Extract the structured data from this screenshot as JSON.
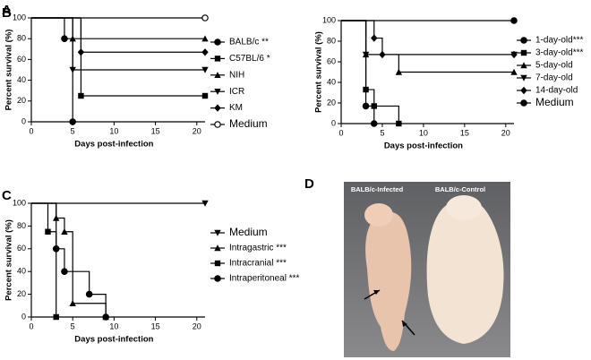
{
  "chart_data": [
    {
      "type": "survival",
      "panel_label": "A",
      "ylabel": "Percent survival (%)",
      "xlabel": "Days post-infection",
      "xlim": [
        0,
        21
      ],
      "xticks": [
        0,
        5,
        10,
        15,
        20
      ],
      "ylim": [
        0,
        100
      ],
      "yticks": [
        0,
        20,
        40,
        60,
        80,
        100
      ],
      "series": [
        {
          "name": "BALB/c **",
          "color": "#000000",
          "marker": "circle",
          "x": [
            0,
            4,
            5
          ],
          "values": [
            100,
            80,
            0
          ]
        },
        {
          "name": "C57BL/6 *",
          "color": "#000000",
          "marker": "square",
          "x": [
            0,
            6,
            21
          ],
          "values": [
            100,
            25,
            25
          ]
        },
        {
          "name": "NIH",
          "color": "#000000",
          "marker": "triangle",
          "x": [
            0,
            5,
            21
          ],
          "values": [
            100,
            80,
            80
          ]
        },
        {
          "name": "ICR",
          "color": "#000000",
          "marker": "triangle-down",
          "x": [
            0,
            5,
            21
          ],
          "values": [
            100,
            50,
            50
          ]
        },
        {
          "name": "KM",
          "color": "#000000",
          "marker": "diamond",
          "x": [
            0,
            6,
            21
          ],
          "values": [
            100,
            67,
            67
          ]
        },
        {
          "name": "Medium",
          "color": "#000000",
          "marker": "circle-open",
          "x": [
            0,
            21
          ],
          "values": [
            100,
            100
          ]
        }
      ]
    },
    {
      "type": "survival",
      "panel_label": "B",
      "ylabel": "Percent survival (%)",
      "xlabel": "Days post-infection",
      "xlim": [
        0,
        21
      ],
      "xticks": [
        0,
        5,
        10,
        15,
        20
      ],
      "ylim": [
        0,
        100
      ],
      "yticks": [
        0,
        20,
        40,
        60,
        80,
        100
      ],
      "series": [
        {
          "name": "1-day-old***",
          "color": "#000000",
          "marker": "circle",
          "x": [
            0,
            3,
            4
          ],
          "values": [
            100,
            17,
            0
          ]
        },
        {
          "name": "3-day-old***",
          "color": "#000000",
          "marker": "square",
          "x": [
            0,
            3,
            4,
            7
          ],
          "values": [
            100,
            33,
            17,
            0
          ]
        },
        {
          "name": "5-day-old",
          "color": "#000000",
          "marker": "triangle",
          "x": [
            0,
            3,
            7,
            21
          ],
          "values": [
            100,
            67,
            50,
            50
          ]
        },
        {
          "name": "7-day-old",
          "color": "#000000",
          "marker": "triangle-down",
          "x": [
            0,
            3,
            21
          ],
          "values": [
            100,
            67,
            67
          ]
        },
        {
          "name": "14-day-old",
          "color": "#000000",
          "marker": "diamond",
          "x": [
            0,
            4,
            5,
            21
          ],
          "values": [
            100,
            83,
            67,
            67
          ]
        },
        {
          "name": "Medium",
          "color": "#000000",
          "marker": "circle",
          "x": [
            0,
            21
          ],
          "values": [
            100,
            100
          ]
        }
      ]
    },
    {
      "type": "survival",
      "panel_label": "C",
      "ylabel": "Percent survival (%)",
      "xlabel": "Days post-infection",
      "xlim": [
        0,
        21
      ],
      "xticks": [
        0,
        5,
        10,
        15,
        20
      ],
      "ylim": [
        0,
        100
      ],
      "yticks": [
        0,
        20,
        40,
        60,
        80,
        100
      ],
      "series": [
        {
          "name": "Medium",
          "color": "#000000",
          "marker": "triangle-down",
          "x": [
            0,
            21
          ],
          "values": [
            100,
            100
          ]
        },
        {
          "name": "Intragastric ***",
          "color": "#000000",
          "marker": "triangle",
          "x": [
            0,
            3,
            4,
            5,
            9
          ],
          "values": [
            100,
            87,
            75,
            12,
            0
          ]
        },
        {
          "name": "Intracranial ***",
          "color": "#000000",
          "marker": "square",
          "x": [
            0,
            2,
            3
          ],
          "values": [
            100,
            75,
            0
          ]
        },
        {
          "name": "Intraperitoneal ***",
          "color": "#000000",
          "marker": "circle",
          "x": [
            0,
            3,
            4,
            7,
            9
          ],
          "values": [
            100,
            60,
            40,
            20,
            0
          ]
        }
      ]
    }
  ],
  "photo_panel": {
    "panel_label": "D",
    "labels": [
      "BALB/c-Infected",
      "BALB/c-Control"
    ]
  }
}
